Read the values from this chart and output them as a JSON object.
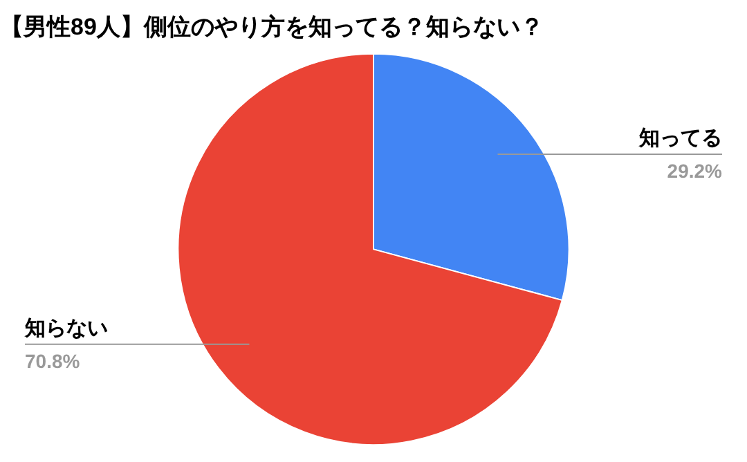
{
  "chart_data": {
    "type": "pie",
    "title": "【男性89人】側位のやり方を知ってる？知らない？",
    "categories": [
      "知ってる",
      "知らない"
    ],
    "values": [
      29.2,
      70.8
    ],
    "colors": [
      "#4285f4",
      "#ea4335"
    ],
    "value_labels": [
      "29.2%",
      "70.8%"
    ],
    "legend": false
  }
}
